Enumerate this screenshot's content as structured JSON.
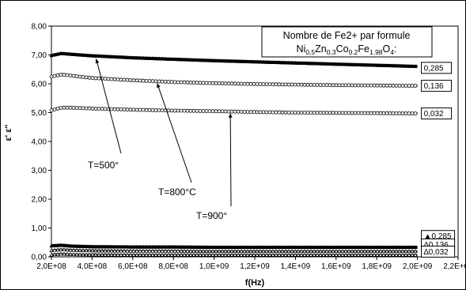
{
  "chart_data": {
    "type": "line",
    "xlabel": "f(Hz)",
    "ylabel": "ε'  ε''",
    "xlim": [
      200000000,
      2200000000
    ],
    "ylim": [
      0,
      8
    ],
    "x_tick_labels": [
      "2,0E+08",
      "4,0E+08",
      "6,0E+08",
      "8,0E+08",
      "1,0E+09",
      "1,2E+09",
      "1,4E+09",
      "1,6E+09",
      "1,8E+09",
      "2,0E+09",
      "2,2E+09"
    ],
    "y_tick_labels": [
      "0,00",
      "1,00",
      "2,00",
      "3,00",
      "4,00",
      "5,00",
      "6,00",
      "7,00",
      "8,00"
    ],
    "grid": false,
    "legend": {
      "title_line1": "Nombre de Fe2+ par formule",
      "formula": {
        "ni": "Ni",
        "ni_sub": "0,5",
        "zn": "Zn",
        "zn_sub": "0,3",
        "co": "Co",
        "co_sub": "0.2",
        "fe": "Fe",
        "fe_sub": "1.98",
        "o": "O",
        "o_sub": "4",
        "tail": ":"
      }
    },
    "series": [
      {
        "group": "eps_prime",
        "marker": "filled-triangle",
        "label": "0,285",
        "x": [
          200000000,
          250000000,
          300000000,
          400000000,
          600000000,
          800000000,
          1000000000,
          1200000000,
          1400000000,
          1600000000,
          1800000000,
          2000000000
        ],
        "y": [
          6.98,
          7.05,
          7.02,
          6.97,
          6.9,
          6.85,
          6.8,
          6.76,
          6.72,
          6.68,
          6.64,
          6.6
        ]
      },
      {
        "group": "eps_prime",
        "marker": "open-circle",
        "label": "0,136",
        "x": [
          200000000,
          250000000,
          300000000,
          400000000,
          600000000,
          800000000,
          1000000000,
          1200000000,
          1400000000,
          1600000000,
          1800000000,
          2000000000
        ],
        "y": [
          6.25,
          6.32,
          6.28,
          6.2,
          6.12,
          6.06,
          6.02,
          5.99,
          5.97,
          5.95,
          5.94,
          5.93
        ]
      },
      {
        "group": "eps_prime",
        "marker": "open-circle",
        "label": "0,032",
        "x": [
          200000000,
          250000000,
          300000000,
          400000000,
          600000000,
          800000000,
          1000000000,
          1200000000,
          1400000000,
          1600000000,
          1800000000,
          2000000000
        ],
        "y": [
          5.08,
          5.17,
          5.17,
          5.14,
          5.1,
          5.07,
          5.05,
          5.02,
          5.0,
          4.99,
          4.98,
          4.97
        ]
      },
      {
        "group": "eps_double_prime",
        "marker": "filled-triangle",
        "label": "▲0,285",
        "x": [
          200000000,
          250000000,
          300000000,
          400000000,
          600000000,
          800000000,
          1000000000,
          1200000000,
          1400000000,
          1600000000,
          1800000000,
          2000000000
        ],
        "y": [
          0.38,
          0.4,
          0.37,
          0.35,
          0.34,
          0.34,
          0.33,
          0.33,
          0.33,
          0.33,
          0.33,
          0.33
        ]
      },
      {
        "group": "eps_double_prime",
        "marker": "open-triangle",
        "label": "∆0,136",
        "x": [
          200000000,
          250000000,
          300000000,
          400000000,
          600000000,
          800000000,
          1000000000,
          1200000000,
          1400000000,
          1600000000,
          1800000000,
          2000000000
        ],
        "y": [
          0.22,
          0.25,
          0.23,
          0.21,
          0.2,
          0.2,
          0.19,
          0.19,
          0.19,
          0.19,
          0.19,
          0.19
        ]
      },
      {
        "group": "eps_double_prime",
        "marker": "open-triangle",
        "label": "∆0,032",
        "x": [
          200000000,
          250000000,
          300000000,
          400000000,
          600000000,
          800000000,
          1000000000,
          1200000000,
          1400000000,
          1600000000,
          1800000000,
          2000000000
        ],
        "y": [
          0.07,
          0.1,
          0.08,
          0.07,
          0.06,
          0.06,
          0.06,
          0.06,
          0.06,
          0.06,
          0.06,
          0.06
        ]
      }
    ],
    "annotations": [
      {
        "text": "T=500°",
        "point_x": 420000000,
        "point_y": 6.95
      },
      {
        "text": "T=800°C",
        "point_x": 720000000,
        "point_y": 6.1
      },
      {
        "text": "T=900°",
        "point_x": 1080000000,
        "point_y": 5.06
      }
    ]
  }
}
